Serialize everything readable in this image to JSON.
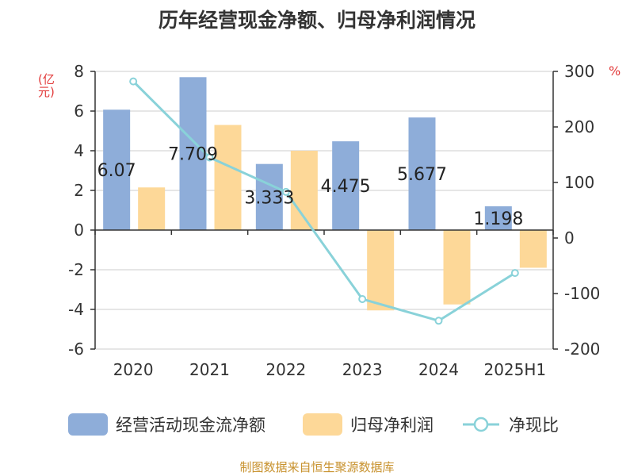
{
  "title": "历年经营现金净额、归母净利润情况",
  "source": "制图数据来自恒生聚源数据库",
  "colors": {
    "cashflow": "#8eadd9",
    "profit": "#fdd898",
    "ratio": "#89d2d9",
    "axis_unit": "#e23b3b"
  },
  "chart_data": {
    "type": "bar",
    "categories": [
      "2020",
      "2021",
      "2022",
      "2023",
      "2024",
      "2025H1"
    ],
    "left_axis": {
      "unit": "(亿元)",
      "ylim": [
        -6,
        8
      ],
      "ticks": [
        "8",
        "6",
        "4",
        "2",
        "0",
        "-2",
        "-4",
        "-6"
      ]
    },
    "right_axis": {
      "unit": "%",
      "ylim": [
        -200,
        300
      ],
      "ticks": [
        "300",
        "200",
        "100",
        "0",
        "-100",
        "-200"
      ]
    },
    "series": [
      {
        "name": "经营活动现金流净额",
        "type": "bar",
        "axis": "left",
        "values": [
          6.07,
          7.709,
          3.333,
          4.475,
          5.677,
          1.198
        ],
        "labels": [
          "6.07",
          "7.709",
          "3.333",
          "4.475",
          "5.677",
          "1.198"
        ]
      },
      {
        "name": "归母净利润",
        "type": "bar",
        "axis": "left",
        "values": [
          2.15,
          5.3,
          4.0,
          -4.05,
          -3.75,
          -1.9
        ]
      },
      {
        "name": "净现比",
        "type": "line",
        "axis": "right",
        "values": [
          282,
          145,
          83,
          -110,
          -149,
          -63
        ]
      }
    ],
    "grid": true,
    "legend_position": "bottom"
  }
}
